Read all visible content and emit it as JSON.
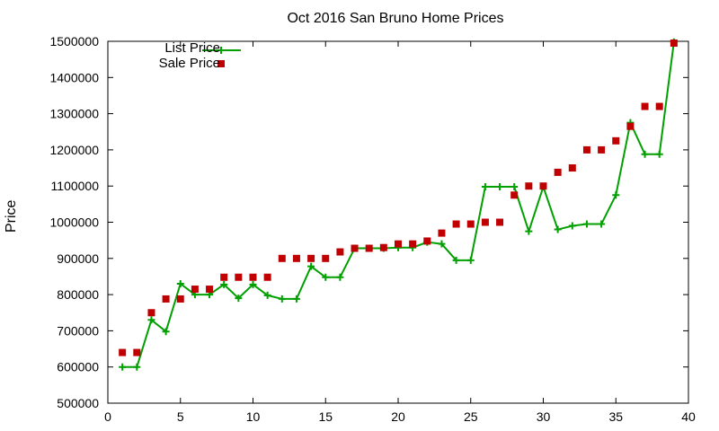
{
  "chart_data": {
    "type": "line",
    "title": "Oct 2016 San Bruno Home Prices",
    "xlabel": "",
    "ylabel": "Price",
    "xlim": [
      0,
      40
    ],
    "ylim": [
      500000,
      1500000
    ],
    "xticks": [
      0,
      5,
      10,
      15,
      20,
      25,
      30,
      35,
      40
    ],
    "yticks": [
      500000,
      600000,
      700000,
      800000,
      900000,
      1000000,
      1100000,
      1200000,
      1300000,
      1400000,
      1500000
    ],
    "legend_position": "top-left",
    "grid": false,
    "series": [
      {
        "name": "List Price",
        "style": "line-with-plus",
        "color": "#00a000",
        "x": [
          1,
          2,
          3,
          4,
          5,
          6,
          7,
          8,
          9,
          10,
          11,
          12,
          13,
          14,
          15,
          16,
          17,
          18,
          19,
          20,
          21,
          22,
          23,
          24,
          25,
          26,
          27,
          28,
          29,
          30,
          31,
          32,
          33,
          34,
          35,
          36,
          37,
          38,
          39
        ],
        "y": [
          600000,
          600000,
          730000,
          698000,
          830000,
          800000,
          800000,
          828000,
          790000,
          828000,
          798000,
          788000,
          788000,
          878000,
          848000,
          848000,
          928000,
          928000,
          928000,
          930000,
          930000,
          945000,
          940000,
          895000,
          895000,
          1098000,
          1098000,
          1098000,
          975000,
          1098000,
          980000,
          990000,
          995000,
          995000,
          1075000,
          1275000,
          1188000,
          1188000,
          1498000
        ]
      },
      {
        "name": "Sale Price",
        "style": "square-markers",
        "color": "#c00000",
        "x": [
          1,
          2,
          3,
          4,
          5,
          6,
          7,
          8,
          9,
          10,
          11,
          12,
          13,
          14,
          15,
          16,
          17,
          18,
          19,
          20,
          21,
          22,
          23,
          24,
          25,
          26,
          27,
          28,
          29,
          30,
          31,
          32,
          33,
          34,
          35,
          36,
          37,
          38,
          39
        ],
        "y": [
          640000,
          640000,
          750000,
          788000,
          788000,
          815000,
          815000,
          848000,
          848000,
          848000,
          848000,
          900000,
          900000,
          900000,
          900000,
          918000,
          928000,
          928000,
          930000,
          940000,
          940000,
          948000,
          970000,
          995000,
          995000,
          1000000,
          1000000,
          1075000,
          1100000,
          1100000,
          1138000,
          1150000,
          1200000,
          1200000,
          1225000,
          1265000,
          1320000,
          1320000,
          1495000
        ]
      }
    ]
  }
}
